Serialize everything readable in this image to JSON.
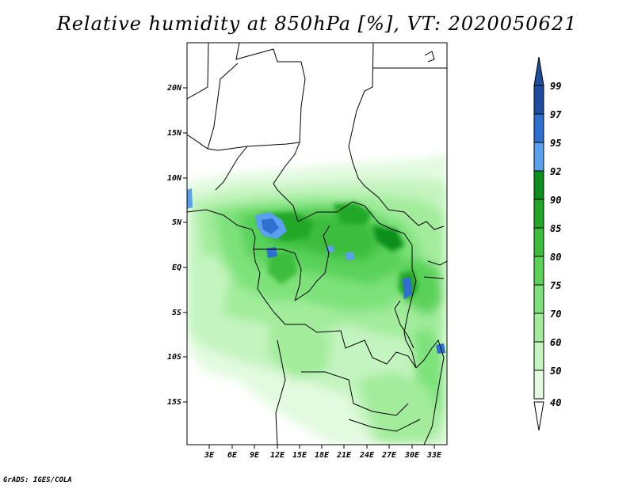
{
  "title": "Relative humidity at 850hPa [%], VT: 2020050621",
  "credit": "GrADS: IGES/COLA",
  "map": {
    "lat_labels": [
      "20N",
      "15N",
      "10N",
      "5N",
      "EQ",
      "5S",
      "10S",
      "15S"
    ],
    "lon_labels": [
      "3E",
      "6E",
      "9E",
      "12E",
      "15E",
      "18E",
      "21E",
      "24E",
      "27E",
      "30E",
      "33E"
    ]
  },
  "colorbar": {
    "labels": [
      "99",
      "97",
      "95",
      "92",
      "90",
      "85",
      "80",
      "75",
      "70",
      "60",
      "50",
      "40"
    ],
    "colors": [
      "#1e4ea0",
      "#2f6fcf",
      "#5aa0ee",
      "#0c8f1c",
      "#21a828",
      "#3cbd3c",
      "#5ad25a",
      "#7ee27a",
      "#a2ec9c",
      "#c4f4bf",
      "#e2fadf",
      "#ffffff"
    ]
  }
}
